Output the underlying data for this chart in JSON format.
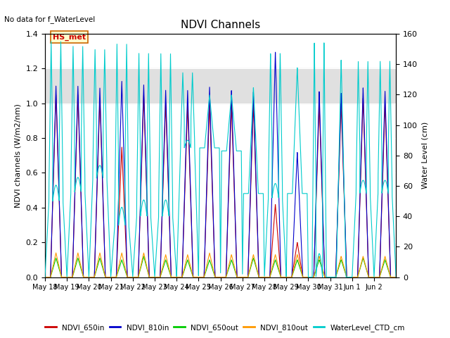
{
  "title": "NDVI Channels",
  "ylabel_left": "NDVI channels (W/m2/nm)",
  "ylabel_right": "Water Level (cm)",
  "no_data_text": "No data for f_WaterLevel",
  "station_label": "HS_met",
  "n_days": 16,
  "ylim_left": [
    0,
    1.4
  ],
  "ylim_right": [
    0,
    160
  ],
  "x_labels": [
    "May 18",
    "May 19",
    "May 20",
    "May 21",
    "May 22",
    "May 23",
    "May 24",
    "May 25",
    "May 26",
    "May 27",
    "May 28",
    "May 29",
    "May 30",
    "May 31",
    "Jun 1",
    "Jun 2"
  ],
  "colors": {
    "NDVI_650in": "#cc0000",
    "NDVI_810in": "#0000cc",
    "NDVI_650out": "#00cc00",
    "NDVI_810out": "#ff9900",
    "WaterLevel_CTD_cm": "#00cccc"
  },
  "shaded_region": [
    1.0,
    1.2
  ],
  "ndvi_650in_peaks": [
    1.05,
    1.05,
    1.03,
    0.75,
    1.05,
    1.01,
    1.0,
    1.01,
    1.0,
    1.0,
    0.42,
    0.2,
    1.0,
    1.0,
    1.03,
    1.0
  ],
  "ndvi_810in_peaks": [
    1.1,
    1.1,
    1.09,
    1.13,
    1.11,
    1.08,
    1.08,
    1.1,
    1.08,
    1.07,
    1.3,
    0.72,
    1.07,
    1.06,
    1.09,
    1.07
  ],
  "ndvi_650out_peaks": [
    0.11,
    0.11,
    0.11,
    0.1,
    0.12,
    0.1,
    0.1,
    0.1,
    0.1,
    0.11,
    0.1,
    0.1,
    0.1,
    0.1,
    0.11,
    0.1
  ],
  "ndvi_810out_peaks": [
    0.14,
    0.14,
    0.14,
    0.14,
    0.14,
    0.13,
    0.13,
    0.14,
    0.13,
    0.13,
    0.13,
    0.13,
    0.12,
    0.12,
    0.12,
    0.12
  ],
  "water_spike_heights": [
    155,
    152,
    150,
    154,
    148,
    148,
    135,
    120,
    120,
    125,
    148,
    138,
    155,
    143,
    142,
    142
  ],
  "water_valleys": [
    50,
    56,
    65,
    34,
    40,
    40,
    85,
    85,
    83,
    55,
    52,
    55,
    0,
    0,
    55,
    55
  ],
  "water_double_spike": [
    true,
    true,
    true,
    true,
    true,
    true,
    true,
    false,
    false,
    false,
    true,
    false,
    true,
    false,
    true,
    true
  ]
}
